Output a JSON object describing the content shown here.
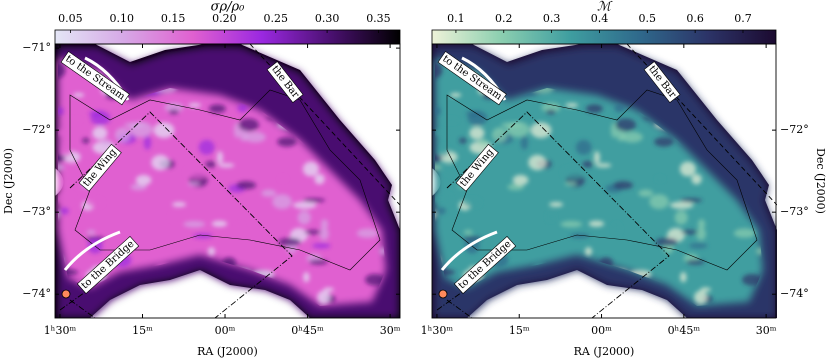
{
  "chart_data": [
    {
      "type": "map",
      "colorbar": {
        "label": "σρ/ρ₀",
        "lim": [
          0.035,
          0.371
        ],
        "ticks": [
          0.05,
          {
            "value": 0.1,
            "label": "0.10"
          },
          0.15,
          {
            "value": 0.2,
            "label": "0.20"
          },
          0.25,
          {
            "value": 0.3,
            "label": "0.30"
          },
          0.35
        ]
      },
      "colormap": [
        "#e4e6f6",
        "#d6a8e6",
        "#e060d0",
        "#9a28e0",
        "#4a1070",
        "#000000"
      ],
      "xlabel": "RA (J2000)",
      "ylabel": "Dec (J2000)",
      "xlim": [
        90.9,
        28.2
      ],
      "ylim": [
        -74.29,
        -70.95
      ],
      "xticks": [
        {
          "value": 90,
          "label": "1ʰ30ᵐ"
        },
        {
          "value": 75,
          "label": "15ᵐ"
        },
        {
          "value": 60,
          "label": "00ᵐ"
        },
        {
          "value": 45,
          "label": "0ʰ45ᵐ"
        },
        {
          "value": 30,
          "label": "30ᵐ"
        }
      ],
      "yticks": [
        {
          "value": -71,
          "label": "−71°"
        },
        {
          "value": -72,
          "label": "−72°"
        },
        {
          "value": -73,
          "label": "−73°"
        },
        {
          "value": -74,
          "label": "−74°"
        }
      ],
      "yaxis": "left",
      "annotations": [
        "to the Stream",
        "the Bar",
        "the Wing",
        "to the Bridge"
      ]
    },
    {
      "type": "map",
      "colorbar": {
        "label": "ℳ",
        "lim": [
          0.05,
          0.769
        ],
        "ticks": [
          0.1,
          0.2,
          0.3,
          0.4,
          0.5,
          0.6,
          0.7
        ]
      },
      "colormap": [
        "#eef2d8",
        "#8ccfb0",
        "#3f9ea0",
        "#2f6a8c",
        "#2c3468",
        "#1c0a30"
      ],
      "xlabel": "RA (J2000)",
      "ylabel": "Dec (J2000)",
      "xlim": [
        90.9,
        28.2
      ],
      "ylim": [
        -74.29,
        -70.95
      ],
      "xticks": [
        {
          "value": 90,
          "label": "1ʰ30ᵐ"
        },
        {
          "value": 75,
          "label": "15ᵐ"
        },
        {
          "value": 60,
          "label": "00ᵐ"
        },
        {
          "value": 45,
          "label": "0ʰ45ᵐ"
        },
        {
          "value": 30,
          "label": "30ᵐ"
        }
      ],
      "yticks": [
        {
          "value": -72,
          "label": "−72°"
        },
        {
          "value": -73,
          "label": "−73°"
        },
        {
          "value": -74,
          "label": "−74°"
        }
      ],
      "yaxis": "right",
      "annotations": [
        "to the Stream",
        "the Bar",
        "the Wing",
        "to the Bridge"
      ]
    }
  ]
}
